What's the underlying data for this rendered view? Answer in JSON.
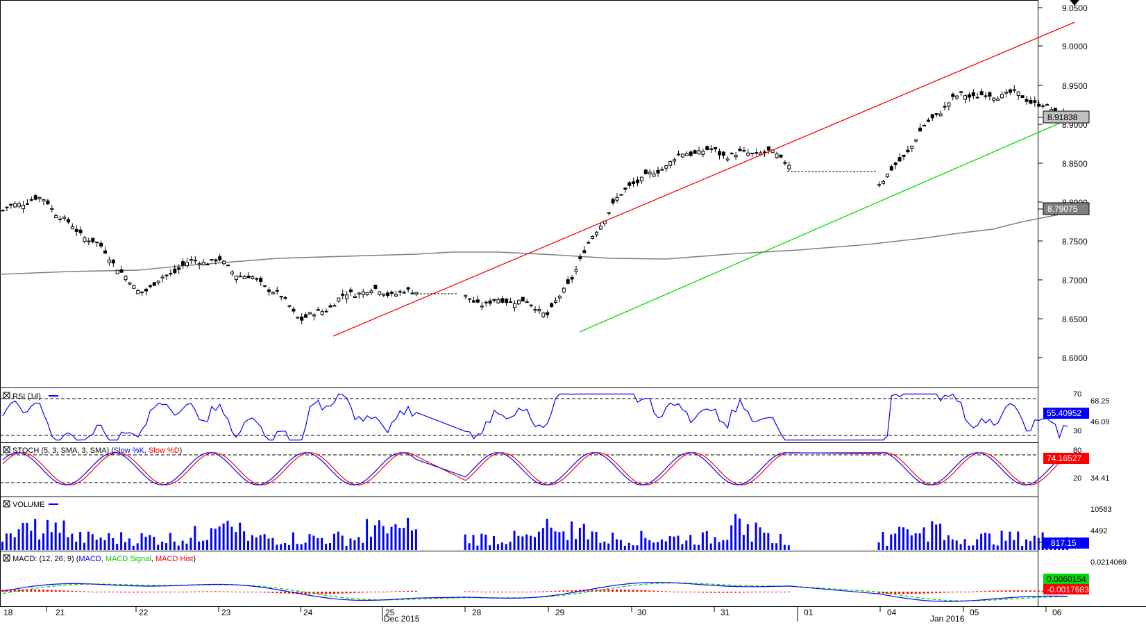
{
  "price_axis": {
    "ticks": [
      "9.0500",
      "9.0000",
      "8.9500",
      "8.9000",
      "8.8500",
      "8.8000",
      "8.7500",
      "8.7000",
      "8.6500",
      "8.6000"
    ],
    "last_price": "8.91838",
    "ma_value": "8.79075"
  },
  "indicators": {
    "rsi": {
      "label": "RSI (14)",
      "levels": [
        "70",
        "30"
      ],
      "axis": [
        "68.25",
        "46.09"
      ],
      "value": "55.40952"
    },
    "stoch": {
      "label_main": "STOCH (5, 3, SMA, 3, SMA) (",
      "label_k": "Slow %K",
      "label_sep": ", ",
      "label_d": "Slow %D",
      "label_end": ")",
      "levels": [
        "80",
        "20"
      ],
      "axis": [
        "34.41"
      ],
      "value": "74.16527"
    },
    "volume": {
      "label": "VOLUME",
      "axis": [
        "10563",
        "4492"
      ],
      "value": "817.15"
    },
    "macd": {
      "label_main": "MACD: (12, 26, 9) (",
      "label_macd": "MACD",
      "label_sep1": ", ",
      "label_signal": "MACD Signal",
      "label_sep2": ", ",
      "label_hist": "MACD Hist",
      "label_end": ")",
      "axis": [
        "0.0214069"
      ],
      "value_signal": "0.0060154",
      "value_hist": "-0.0017683"
    }
  },
  "time_axis": {
    "days": [
      "18",
      "21",
      "22",
      "23",
      "24",
      "25",
      "28",
      "29",
      "30",
      "31",
      "01",
      "04",
      "05",
      "06"
    ],
    "months": [
      "Dec 2015",
      "Jan 2016"
    ]
  },
  "colors": {
    "up_channel": "#ff0000",
    "support": "#00dd00",
    "ma": "#808080",
    "rsi": "#0000ff",
    "stoch_k": "#0000ff",
    "stoch_d": "#ff0000",
    "volume": "#0000ff",
    "macd": "#0000ff",
    "macd_signal": "#00cc00",
    "macd_hist": "#ff0000"
  },
  "icons": {
    "indicator_close": "close-box-icon",
    "scroll_marker": "triangle-down-icon"
  },
  "chart_data": {
    "type": "candlestick",
    "instrument_precision": 5,
    "ylim": [
      8.56,
      9.06
    ],
    "price_series_keypoints": [
      {
        "date": "Dec 18",
        "price": 8.785
      },
      {
        "date": "Dec 21",
        "price": 8.805
      },
      {
        "date": "Dec 22",
        "price": 8.69
      },
      {
        "date": "Dec 23",
        "price": 8.73
      },
      {
        "date": "Dec 24",
        "price": 8.655
      },
      {
        "date": "Dec 25",
        "price": 8.69
      },
      {
        "date": "Dec 28",
        "price": 8.68
      },
      {
        "date": "Dec 29",
        "price": 8.66
      },
      {
        "date": "Dec 30",
        "price": 8.83
      },
      {
        "date": "Dec 31",
        "price": 8.87
      },
      {
        "date": "Jan 04",
        "price": 8.83
      },
      {
        "date": "Jan 05",
        "price": 8.945
      },
      {
        "date": "Jan 06",
        "price": 8.918
      }
    ],
    "moving_average_last": 8.79075,
    "last_price": 8.91838
  }
}
